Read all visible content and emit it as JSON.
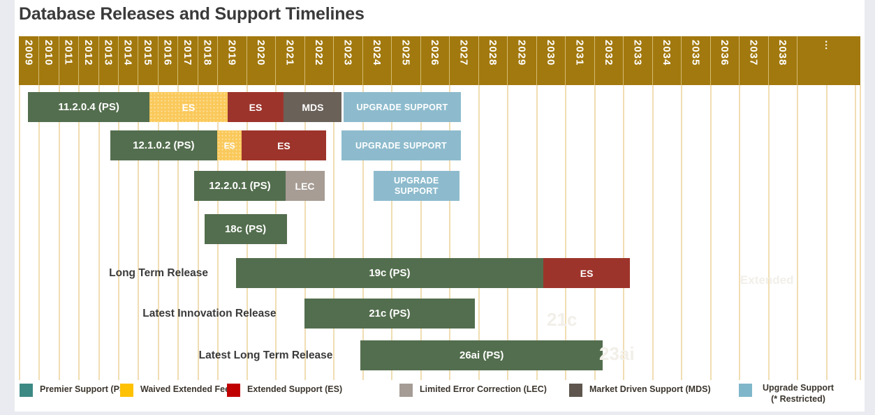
{
  "title": "Database Releases and Support Timelines",
  "colors": {
    "header_bg": "#a2790e",
    "header_divider": "rgba(240,222,170,0.65)",
    "gridline": "#f0ddb2",
    "title_text": "#3a3a3a",
    "bar": {
      "ps": "#536e4e",
      "waived": "#fac95b",
      "es": "#9d342b",
      "mds": "#6a6158",
      "lec": "#a79d95",
      "upgrade": "#8dbbcd"
    },
    "legend_swatch": {
      "ps": "#3d8984",
      "waived": "#ffc103",
      "es": "#c00000",
      "lec": "#a59c96",
      "mds": "#5e564e",
      "upgrade": "#7fb6ca"
    }
  },
  "chart_data": {
    "type": "gantt",
    "title": "Database Releases and Support Timelines",
    "x_axis": {
      "start": 2009,
      "end": 2038,
      "ellipsis_label": "…",
      "years": [
        2009,
        2010,
        2011,
        2012,
        2013,
        2014,
        2015,
        2016,
        2017,
        2018,
        2019,
        2020,
        2021,
        2022,
        2023,
        2024,
        2025,
        2026,
        2027,
        2028,
        2029,
        2030,
        2031,
        2032,
        2033,
        2034,
        2035,
        2036,
        2037,
        2038
      ]
    },
    "rows": [
      {
        "name": "11.2.0.4",
        "row_label": "",
        "segments": [
          {
            "label": "11.2.0.4 (PS)",
            "type": "ps",
            "start": 2009.45,
            "end": 2015.6
          },
          {
            "label": "ES",
            "type": "waived",
            "start": 2015.6,
            "end": 2019.35
          },
          {
            "label": "ES",
            "type": "es",
            "start": 2019.35,
            "end": 2021.3
          },
          {
            "label": "MDS",
            "type": "mds",
            "start": 2021.3,
            "end": 2023.3
          },
          {
            "label": "UPGRADE SUPPORT",
            "type": "upgrade",
            "start": 2023.37,
            "end": 2027.4
          }
        ]
      },
      {
        "name": "12.1.0.2",
        "row_label": "",
        "segments": [
          {
            "label": "12.1.0.2 (PS)",
            "type": "ps",
            "start": 2013.6,
            "end": 2019.0
          },
          {
            "label": "ES",
            "type": "waived",
            "start": 2019.0,
            "end": 2019.85,
            "small": true
          },
          {
            "label": "ES",
            "type": "es",
            "start": 2019.85,
            "end": 2022.75
          },
          {
            "label": "UPGRADE SUPPORT",
            "type": "upgrade",
            "start": 2023.3,
            "end": 2027.4
          }
        ]
      },
      {
        "name": "12.2.0.1",
        "row_label": "",
        "segments": [
          {
            "label": "12.2.0.1 (PS)",
            "type": "ps",
            "start": 2017.85,
            "end": 2021.35
          },
          {
            "label": "LEC",
            "type": "lec",
            "start": 2021.35,
            "end": 2022.7
          },
          {
            "label": "UPGRADE SUPPORT",
            "type": "upgrade",
            "start": 2024.4,
            "end": 2027.35,
            "wrap": true
          }
        ]
      },
      {
        "name": "18c",
        "row_label": "",
        "segments": [
          {
            "label": "18c (PS)",
            "type": "ps",
            "start": 2018.35,
            "end": 2021.4
          }
        ]
      },
      {
        "name": "19c",
        "row_label": "Long Term Release",
        "segments": [
          {
            "label": "19c (PS)",
            "type": "ps",
            "start": 2019.65,
            "end": 2030.25
          },
          {
            "label": "ES",
            "type": "es",
            "start": 2030.25,
            "end": 2033.25
          }
        ]
      },
      {
        "name": "21c",
        "row_label": "Latest Innovation Release",
        "segments": [
          {
            "label": "21c (PS)",
            "type": "ps",
            "start": 2022.0,
            "end": 2027.9
          }
        ]
      },
      {
        "name": "26ai",
        "row_label": "Latest Long Term Release",
        "segments": [
          {
            "label": "26ai (PS)",
            "type": "ps",
            "start": 2023.95,
            "end": 2032.3
          }
        ]
      }
    ],
    "legend": [
      {
        "type": "ps",
        "label": "Premier Support (PS)"
      },
      {
        "type": "waived",
        "label": "Waived Extended Fee"
      },
      {
        "type": "es",
        "label": "Extended Support (ES)"
      },
      {
        "type": "lec",
        "label": "Limited Error Correction (LEC)"
      },
      {
        "type": "mds",
        "label": "Market Driven Support (MDS)"
      },
      {
        "type": "upgrade",
        "label": "Upgrade Support",
        "label2": "(* Restricted)"
      }
    ],
    "ghost_labels": [
      "Extended",
      "21c",
      "23ai"
    ]
  }
}
